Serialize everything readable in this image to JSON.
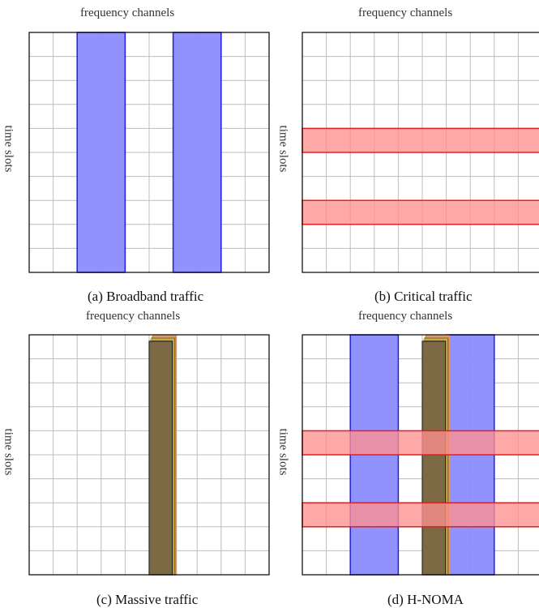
{
  "figure": {
    "x_axis_label": "frequency channels",
    "y_axis_label": "time slots",
    "colors": {
      "grid": "#bdbdbd",
      "frame": "#000000",
      "broadband_fill": "#8c8cff",
      "broadband_stroke": "#1f1fe0",
      "critical_fill": "#ff8f8f",
      "critical_stroke": "#e02020",
      "massive_fill": "#7d6a45",
      "massive_stroke": "#2b2b2b"
    },
    "panels": [
      {
        "id": "a",
        "caption": "(a) Broadband traffic",
        "grid_cols": 10,
        "grid_rows": 10,
        "broadband_channels": [
          [
            2,
            4
          ],
          [
            6,
            8
          ]
        ],
        "critical_slots": [],
        "massive_channel": null
      },
      {
        "id": "b",
        "caption": "(b) Critical traffic",
        "grid_cols": 10,
        "grid_rows": 10,
        "broadband_channels": [],
        "critical_slots": [
          [
            4,
            5
          ],
          [
            7,
            8
          ]
        ],
        "massive_channel": null
      },
      {
        "id": "c",
        "caption": "(c) Massive traffic",
        "grid_cols": 10,
        "grid_rows": 10,
        "broadband_channels": [],
        "critical_slots": [],
        "massive_channel": 5
      },
      {
        "id": "d",
        "caption": "(d) H-NOMA",
        "grid_cols": 10,
        "grid_rows": 10,
        "broadband_channels": [
          [
            2,
            4
          ],
          [
            6,
            8
          ]
        ],
        "critical_slots": [
          [
            4,
            5
          ],
          [
            7,
            8
          ]
        ],
        "massive_channel": 5
      }
    ]
  }
}
